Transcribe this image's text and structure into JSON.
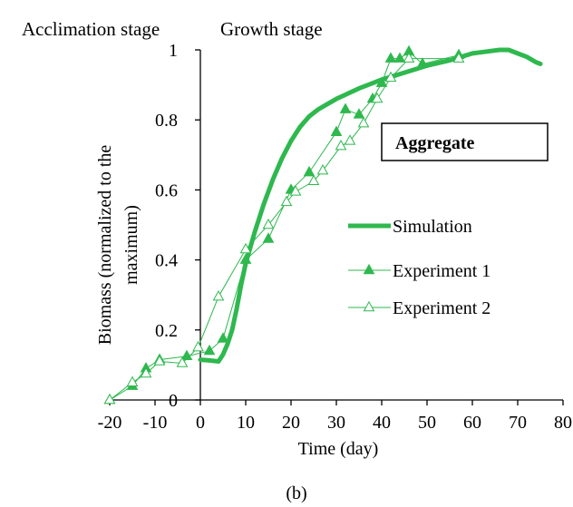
{
  "chart_data": {
    "type": "line",
    "title": "",
    "xlabel": "Time (day)",
    "ylabel": "Biomass (normalized to the maximum)",
    "xlim": [
      -20,
      80
    ],
    "ylim": [
      0,
      1
    ],
    "x_ticks": [
      -20,
      -10,
      0,
      10,
      20,
      30,
      40,
      50,
      60,
      70,
      80
    ],
    "y_ticks": [
      0,
      0.2,
      0.4,
      0.6,
      0.8,
      1
    ],
    "x_tick_labels": [
      "-20",
      "-10",
      "0",
      "10",
      "20",
      "30",
      "40",
      "50",
      "60",
      "70",
      "80"
    ],
    "y_tick_labels": [
      "0",
      "0.2",
      "0.4",
      "0.6",
      "0.8",
      "1"
    ],
    "grid": false,
    "stage_labels": [
      "Acclimation stage",
      "Growth stage"
    ],
    "annotation_box": "Aggregate",
    "caption": "(b)",
    "legend_position": "right",
    "series_color": "#2eb84e",
    "series": [
      {
        "name": "Simulation",
        "style": "thick-line",
        "x": [
          0,
          2,
          4,
          5,
          6,
          7,
          8,
          9,
          10,
          12,
          14,
          16,
          18,
          20,
          22,
          24,
          26,
          28,
          30,
          35,
          40,
          45,
          50,
          55,
          60,
          63,
          66,
          68,
          70,
          72,
          74,
          75
        ],
        "y": [
          0.115,
          0.113,
          0.11,
          0.13,
          0.16,
          0.2,
          0.26,
          0.33,
          0.39,
          0.48,
          0.56,
          0.63,
          0.69,
          0.74,
          0.78,
          0.81,
          0.83,
          0.845,
          0.86,
          0.89,
          0.915,
          0.935,
          0.955,
          0.97,
          0.99,
          0.995,
          1.0,
          1.0,
          0.99,
          0.98,
          0.965,
          0.96
        ]
      },
      {
        "name": "Experiment 1",
        "style": "filled-triangle",
        "x": [
          -20,
          -15,
          -12,
          -9,
          -3,
          2,
          5,
          10,
          15,
          20,
          24,
          30,
          32,
          35,
          38,
          40,
          42,
          44,
          46,
          49,
          57
        ],
        "y": [
          0.0,
          0.04,
          0.09,
          0.115,
          0.125,
          0.14,
          0.175,
          0.4,
          0.46,
          0.6,
          0.65,
          0.765,
          0.83,
          0.815,
          0.86,
          0.905,
          0.975,
          0.975,
          0.995,
          0.96,
          0.985
        ]
      },
      {
        "name": "Experiment 2",
        "style": "open-triangle",
        "x": [
          -20,
          -15,
          -12,
          -9,
          -4,
          -0.5,
          4,
          10,
          15,
          19,
          21,
          25,
          27,
          31,
          33,
          36,
          39,
          42,
          46,
          57
        ],
        "y": [
          0.0,
          0.05,
          0.075,
          0.11,
          0.105,
          0.15,
          0.295,
          0.43,
          0.5,
          0.565,
          0.595,
          0.625,
          0.655,
          0.725,
          0.74,
          0.79,
          0.86,
          0.92,
          0.975,
          0.975
        ]
      }
    ]
  }
}
